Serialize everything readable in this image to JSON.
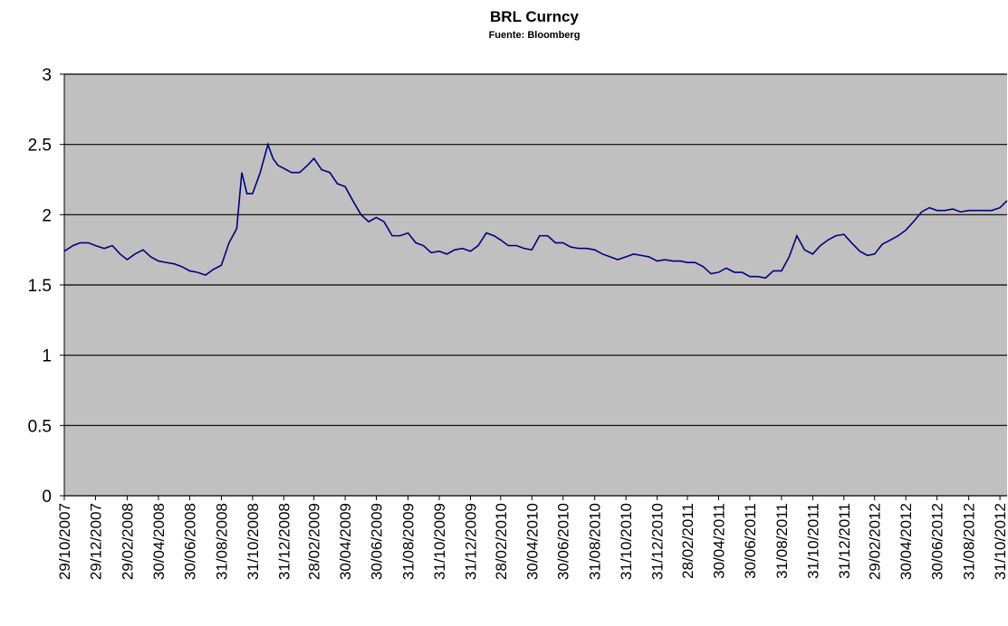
{
  "chart_data": {
    "type": "line",
    "title": "BRL Curncy",
    "subtitle": "Fuente: Bloomberg",
    "x": [
      "29/10/2007",
      "15/11/2007",
      "29/11/2007",
      "15/12/2007",
      "29/12/2007",
      "15/01/2008",
      "31/01/2008",
      "15/02/2008",
      "29/02/2008",
      "15/03/2008",
      "31/03/2008",
      "15/04/2008",
      "30/04/2008",
      "15/05/2008",
      "31/05/2008",
      "15/06/2008",
      "30/06/2008",
      "15/07/2008",
      "31/07/2008",
      "15/08/2008",
      "31/08/2008",
      "15/09/2008",
      "30/09/2008",
      "10/10/2008",
      "20/10/2008",
      "31/10/2008",
      "15/11/2008",
      "30/11/2008",
      "10/12/2008",
      "20/12/2008",
      "31/12/2008",
      "15/01/2009",
      "31/01/2009",
      "15/02/2009",
      "28/02/2009",
      "15/03/2009",
      "31/03/2009",
      "15/04/2009",
      "30/04/2009",
      "15/05/2009",
      "31/05/2009",
      "15/06/2009",
      "30/06/2009",
      "15/07/2009",
      "31/07/2009",
      "15/08/2009",
      "31/08/2009",
      "15/09/2009",
      "30/09/2009",
      "15/10/2009",
      "31/10/2009",
      "15/11/2009",
      "30/11/2009",
      "15/12/2009",
      "31/12/2009",
      "15/01/2010",
      "31/01/2010",
      "15/02/2010",
      "28/02/2010",
      "15/03/2010",
      "31/03/2010",
      "15/04/2010",
      "30/04/2010",
      "15/05/2010",
      "31/05/2010",
      "15/06/2010",
      "30/06/2010",
      "15/07/2010",
      "31/07/2010",
      "15/08/2010",
      "31/08/2010",
      "15/09/2010",
      "30/09/2010",
      "15/10/2010",
      "31/10/2010",
      "15/11/2010",
      "30/11/2010",
      "15/12/2010",
      "31/12/2010",
      "15/01/2011",
      "31/01/2011",
      "15/02/2011",
      "28/02/2011",
      "15/03/2011",
      "31/03/2011",
      "15/04/2011",
      "30/04/2011",
      "15/05/2011",
      "31/05/2011",
      "15/06/2011",
      "30/06/2011",
      "15/07/2011",
      "31/07/2011",
      "15/08/2011",
      "31/08/2011",
      "15/09/2011",
      "30/09/2011",
      "15/10/2011",
      "31/10/2011",
      "15/11/2011",
      "30/11/2011",
      "15/12/2011",
      "31/12/2011",
      "15/01/2012",
      "31/01/2012",
      "15/02/2012",
      "29/02/2012",
      "15/03/2012",
      "31/03/2012",
      "15/04/2012",
      "30/04/2012",
      "15/05/2012",
      "31/05/2012",
      "15/06/2012",
      "30/06/2012",
      "15/07/2012",
      "31/07/2012",
      "15/08/2012",
      "31/08/2012",
      "15/09/2012",
      "30/09/2012",
      "15/10/2012",
      "31/10/2012",
      "14/11/2012"
    ],
    "values": [
      1.74,
      1.78,
      1.8,
      1.8,
      1.78,
      1.76,
      1.78,
      1.72,
      1.68,
      1.72,
      1.75,
      1.7,
      1.67,
      1.66,
      1.65,
      1.63,
      1.6,
      1.59,
      1.57,
      1.61,
      1.64,
      1.8,
      1.9,
      2.3,
      2.15,
      2.15,
      2.3,
      2.5,
      2.4,
      2.35,
      2.33,
      2.3,
      2.3,
      2.35,
      2.4,
      2.32,
      2.3,
      2.22,
      2.2,
      2.1,
      2.0,
      1.95,
      1.98,
      1.95,
      1.85,
      1.85,
      1.87,
      1.8,
      1.78,
      1.73,
      1.74,
      1.72,
      1.75,
      1.76,
      1.74,
      1.78,
      1.87,
      1.85,
      1.82,
      1.78,
      1.78,
      1.76,
      1.75,
      1.85,
      1.85,
      1.8,
      1.8,
      1.77,
      1.76,
      1.76,
      1.75,
      1.72,
      1.7,
      1.68,
      1.7,
      1.72,
      1.71,
      1.7,
      1.67,
      1.68,
      1.67,
      1.67,
      1.66,
      1.66,
      1.63,
      1.58,
      1.59,
      1.62,
      1.59,
      1.59,
      1.56,
      1.56,
      1.55,
      1.6,
      1.6,
      1.7,
      1.85,
      1.75,
      1.72,
      1.78,
      1.82,
      1.85,
      1.86,
      1.8,
      1.74,
      1.71,
      1.72,
      1.79,
      1.82,
      1.85,
      1.89,
      1.95,
      2.02,
      2.05,
      2.03,
      2.03,
      2.04,
      2.02,
      2.03,
      2.03,
      2.03,
      2.03,
      2.05,
      2.1
    ],
    "color": "#000080",
    "xlim": [
      "29/10/2007",
      "14/11/2012"
    ],
    "xticks": [
      "29/10/2007",
      "29/12/2007",
      "29/02/2008",
      "30/04/2008",
      "30/06/2008",
      "31/08/2008",
      "31/10/2008",
      "31/12/2008",
      "28/02/2009",
      "30/04/2009",
      "30/06/2009",
      "31/08/2009",
      "31/10/2009",
      "31/12/2009",
      "28/02/2010",
      "30/04/2010",
      "30/06/2010",
      "31/08/2010",
      "31/10/2010",
      "31/12/2010",
      "28/02/2011",
      "30/04/2011",
      "30/06/2011",
      "31/08/2011",
      "31/10/2011",
      "31/12/2011",
      "29/02/2012",
      "30/04/2012",
      "30/06/2012",
      "31/08/2012",
      "31/10/2012"
    ],
    "ylim": [
      0,
      3
    ],
    "yticks": [
      0,
      0.5,
      1,
      1.5,
      2,
      2.5,
      3
    ],
    "grid": true
  }
}
